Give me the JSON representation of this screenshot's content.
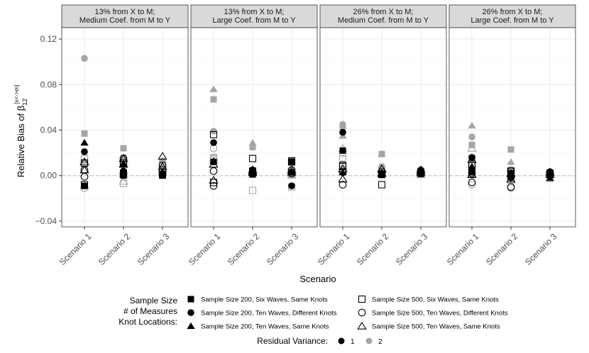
{
  "chart_data": {
    "type": "scatter",
    "facet_titles": [
      [
        "13% from X to M;",
        "Medium Coef. from M to Y"
      ],
      [
        "13% from X to M;",
        "Large Coef. from M to Y"
      ],
      [
        "26% from X to M;",
        "Medium Coef. from M to Y"
      ],
      [
        "26% from X to M;",
        "Large Coef. from M to Y"
      ]
    ],
    "categories": [
      "Scenario 1",
      "Scenario 2",
      "Scenario 3"
    ],
    "xlabel": "Scenario",
    "ylabel_main": "Relative Bias of β",
    "ylabel_sub": "12",
    "ylabel_sup": "[x<->m]",
    "ylim": [
      -0.045,
      0.13
    ],
    "yticks": [
      -0.04,
      0.0,
      0.04,
      0.08,
      0.12
    ],
    "ytick_labels": [
      "−0.04",
      "0.00",
      "0.04",
      "0.08",
      "0.12"
    ],
    "reference_line": 0,
    "legend": {
      "title": [
        "Sample Size",
        "# of Measures",
        "Knot Locations:"
      ],
      "items": [
        {
          "shape": "square_filled",
          "label": "Sample Size 200, Six Waves, Same Knots"
        },
        {
          "shape": "square_open",
          "label": "Sample Size 500, Six Waves, Same Knots"
        },
        {
          "shape": "circle_filled",
          "label": "Sample Size 200, Ten Waves, Different Knots"
        },
        {
          "shape": "circle_open",
          "label": "Sample Size 500, Ten Waves, Different Knots"
        },
        {
          "shape": "triangle_filled",
          "label": "Sample Size 200, Ten Waves, Same Knots"
        },
        {
          "shape": "triangle_open",
          "label": "Sample Size 500, Ten Waves, Same Knots"
        }
      ],
      "variance_title": "Residual Variance:",
      "variance_items": [
        {
          "label": "1",
          "color": "#000000"
        },
        {
          "label": "2",
          "color": "#a6a6a6"
        }
      ]
    },
    "colors": {
      "variance_1": "#000000",
      "variance_2": "#a6a6a6",
      "strip_bg": "#d9d9d9",
      "grid": "#ebebeb",
      "ref_line": "#c8c8c8"
    },
    "series_order": [
      "square_filled",
      "circle_filled",
      "triangle_filled",
      "square_open",
      "circle_open",
      "triangle_open"
    ],
    "panels": [
      {
        "v1": [
          [
            [
              -0.009,
              0.0,
              0.0
            ],
            [
              0.011,
              0.011,
              0.001
            ],
            [
              -0.008,
              0.002,
              0.005
            ]
          ],
          [
            [
              0.021,
              0.004,
              0.001
            ],
            [
              0.005,
              0.015,
              0.009
            ],
            [
              -0.001,
              0.002,
              0.001
            ]
          ],
          [
            [
              0.029,
              0.01,
              0.003
            ],
            [
              0.005,
              0.01,
              0.008
            ],
            [
              0.012,
              0.015,
              0.017
            ]
          ]
        ],
        "v2": [
          [
            [
              0.037,
              0.024,
              0.001
            ],
            [
              0.011,
              0.01,
              0.001
            ],
            [
              0.015,
              -0.007,
              0.009
            ]
          ],
          [
            [
              0.103,
              0.016,
              0.013
            ],
            [
              0.016,
              0.01,
              0.012
            ],
            [
              -0.011,
              0.001,
              0.001
            ]
          ],
          [
            [
              0.013,
              0.012,
              0.005
            ],
            [
              0.012,
              0.001,
              0.006
            ],
            [
              -0.009,
              -0.005,
              0.006
            ]
          ]
        ]
      },
      {
        "v1": [
          [
            [
              0.012,
              0.001,
              0.012
            ],
            [
              0.036,
              0.015,
              0.013
            ],
            [
              -0.006,
              0.004,
              0.012
            ]
          ],
          [
            [
              0.029,
              0.005,
              -0.009
            ],
            [
              0.004,
              0.003,
              0.005
            ],
            [
              -0.009,
              0.002,
              0.002
            ]
          ],
          [
            [
              0.013,
              0.002,
              0.003
            ],
            [
              -0.004,
              0.003,
              0.005
            ],
            [
              0.01,
              0.005,
              0.003
            ]
          ]
        ],
        "v2": [
          [
            [
              0.067,
              0.025,
              0.002
            ],
            [
              0.016,
              0.015,
              0.003
            ],
            [
              0.015,
              -0.013,
              -0.01
            ]
          ],
          [
            [
              0.039,
              0.005,
              0.003
            ],
            [
              0.015,
              0.004,
              0.003
            ],
            [
              0.024,
              0.002,
              0.001
            ]
          ],
          [
            [
              0.076,
              0.029,
              0.0
            ],
            [
              0.015,
              0.004,
              0.003
            ],
            [
              0.01,
              0.003,
              0.001
            ]
          ]
        ]
      },
      {
        "v1": [
          [
            [
              0.022,
              0.001,
              0.002
            ],
            [
              0.009,
              0.001,
              0.003
            ],
            [
              0.008,
              -0.008,
              0.002
            ]
          ],
          [
            [
              0.038,
              0.002,
              0.005
            ],
            [
              -0.008,
              0.003,
              0.004
            ],
            [
              0.003,
              0.001,
              0.002
            ]
          ],
          [
            [
              0.003,
              0.002,
              0.003
            ],
            [
              -0.003,
              0.006,
              0.005
            ],
            [
              0.006,
              0.002,
              0.003
            ]
          ]
        ],
        "v2": [
          [
            [
              0.043,
              0.019,
              0.001
            ],
            [
              0.02,
              0.005,
              0.002
            ],
            [
              0.008,
              0.003,
              0.001
            ]
          ],
          [
            [
              0.045,
              0.008,
              0.003
            ],
            [
              0.015,
              0.005,
              0.004
            ],
            [
              0.01,
              0.004,
              0.002
            ]
          ],
          [
            [
              0.035,
              0.019,
              0.003
            ],
            [
              0.024,
              0.005,
              0.003
            ],
            [
              0.008,
              0.002,
              0.001
            ]
          ]
        ]
      },
      {
        "v1": [
          [
            [
              0.003,
              0.002,
              0.001
            ],
            [
              0.01,
              0.004,
              0.002
            ],
            [
              0.001,
              0.0,
              0.001
            ]
          ],
          [
            [
              0.016,
              -0.002,
              0.003
            ],
            [
              0.002,
              0.004,
              0.003
            ],
            [
              -0.006,
              -0.01,
              0.002
            ]
          ],
          [
            [
              0.008,
              0.001,
              -0.002
            ],
            [
              0.001,
              0.002,
              0.003
            ],
            [
              0.014,
              -0.003,
              0.001
            ]
          ]
        ],
        "v2": [
          [
            [
              0.027,
              0.023,
              0.002
            ],
            [
              0.015,
              0.003,
              0.002
            ],
            [
              0.01,
              0.001,
              0.001
            ]
          ],
          [
            [
              0.034,
              0.004,
              0.002
            ],
            [
              0.005,
              0.005,
              0.003
            ],
            [
              -0.008,
              -0.011,
              0.002
            ]
          ],
          [
            [
              0.044,
              0.012,
              -0.003
            ],
            [
              0.024,
              0.002,
              0.003
            ],
            [
              0.01,
              -0.004,
              0.001
            ]
          ]
        ]
      }
    ]
  }
}
